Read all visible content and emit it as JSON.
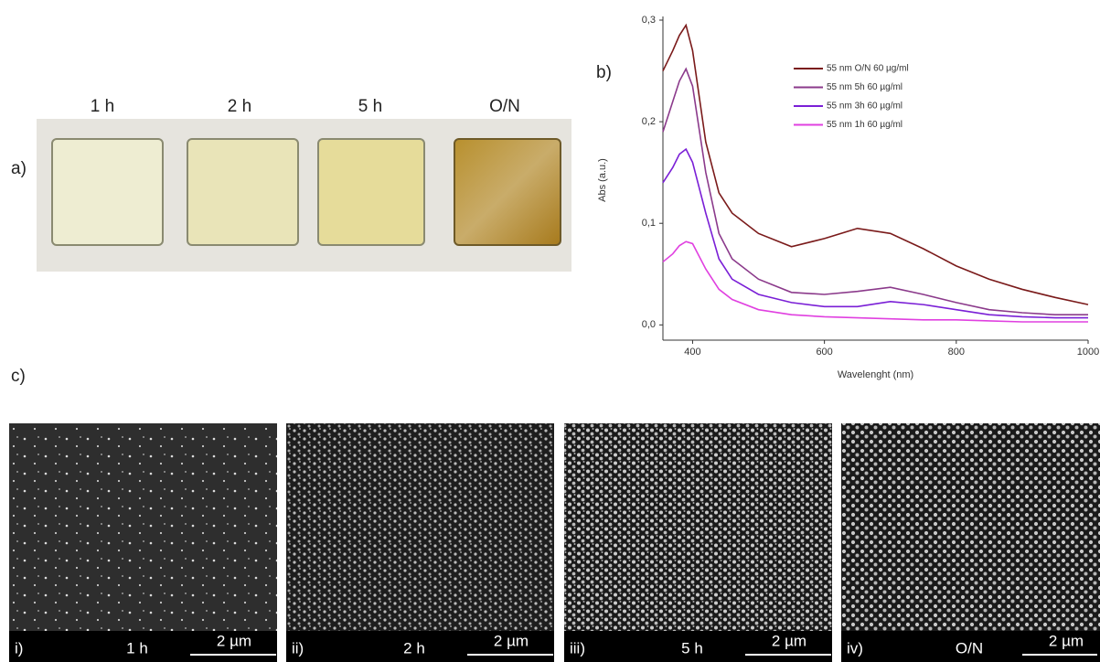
{
  "panel_a": {
    "label": "a)",
    "samples": [
      "1 h",
      "2 h",
      "5 h",
      "O/N"
    ]
  },
  "panel_b": {
    "label": "b)"
  },
  "chart_data": {
    "type": "line",
    "x_label": "Wavelenght (nm)",
    "y_label": "Abs (a.u.)",
    "x": [
      355,
      370,
      380,
      390,
      400,
      420,
      440,
      460,
      500,
      550,
      600,
      650,
      700,
      750,
      800,
      850,
      900,
      950,
      1000
    ],
    "series": [
      {
        "name": "55 nm O/N 60 µg/ml",
        "color": "#7a1a1a",
        "values": [
          0.25,
          0.27,
          0.285,
          0.295,
          0.27,
          0.18,
          0.13,
          0.11,
          0.09,
          0.077,
          0.085,
          0.095,
          0.09,
          0.075,
          0.058,
          0.045,
          0.035,
          0.027,
          0.02
        ]
      },
      {
        "name": "55 nm 5h 60 µg/ml",
        "color": "#8b3a8b",
        "values": [
          0.19,
          0.22,
          0.24,
          0.252,
          0.235,
          0.15,
          0.09,
          0.065,
          0.045,
          0.032,
          0.03,
          0.033,
          0.037,
          0.03,
          0.022,
          0.015,
          0.012,
          0.01,
          0.01
        ]
      },
      {
        "name": "55 nm 3h 60 µg/ml",
        "color": "#7a1fd6",
        "values": [
          0.14,
          0.155,
          0.168,
          0.173,
          0.16,
          0.11,
          0.065,
          0.045,
          0.03,
          0.022,
          0.018,
          0.018,
          0.023,
          0.02,
          0.015,
          0.01,
          0.008,
          0.007,
          0.007
        ]
      },
      {
        "name": "55 nm 1h 60 µg/ml",
        "color": "#e040e0",
        "values": [
          0.062,
          0.07,
          0.078,
          0.082,
          0.08,
          0.055,
          0.035,
          0.025,
          0.015,
          0.01,
          0.008,
          0.007,
          0.006,
          0.005,
          0.005,
          0.004,
          0.003,
          0.003,
          0.003
        ]
      }
    ],
    "xlim": [
      355,
      1000
    ],
    "ylim": [
      -0.015,
      0.3
    ],
    "xticks": [
      400,
      600,
      800,
      1000
    ],
    "yticks": [
      {
        "value": 0,
        "label": "0,0"
      },
      {
        "value": 0.1,
        "label": "0,1"
      },
      {
        "value": 0.2,
        "label": "0,2"
      },
      {
        "value": 0.3,
        "label": "0,3"
      }
    ],
    "legend": "top-right"
  },
  "panel_c": {
    "label": "c)",
    "images": [
      {
        "label": "i)",
        "time": "1 h",
        "scale": "2 µm"
      },
      {
        "label": "ii)",
        "time": "2 h",
        "scale": "2 µm"
      },
      {
        "label": "iii)",
        "time": "5 h",
        "scale": "2 µm"
      },
      {
        "label": "iv)",
        "time": "O/N",
        "scale": "2 µm"
      }
    ]
  }
}
